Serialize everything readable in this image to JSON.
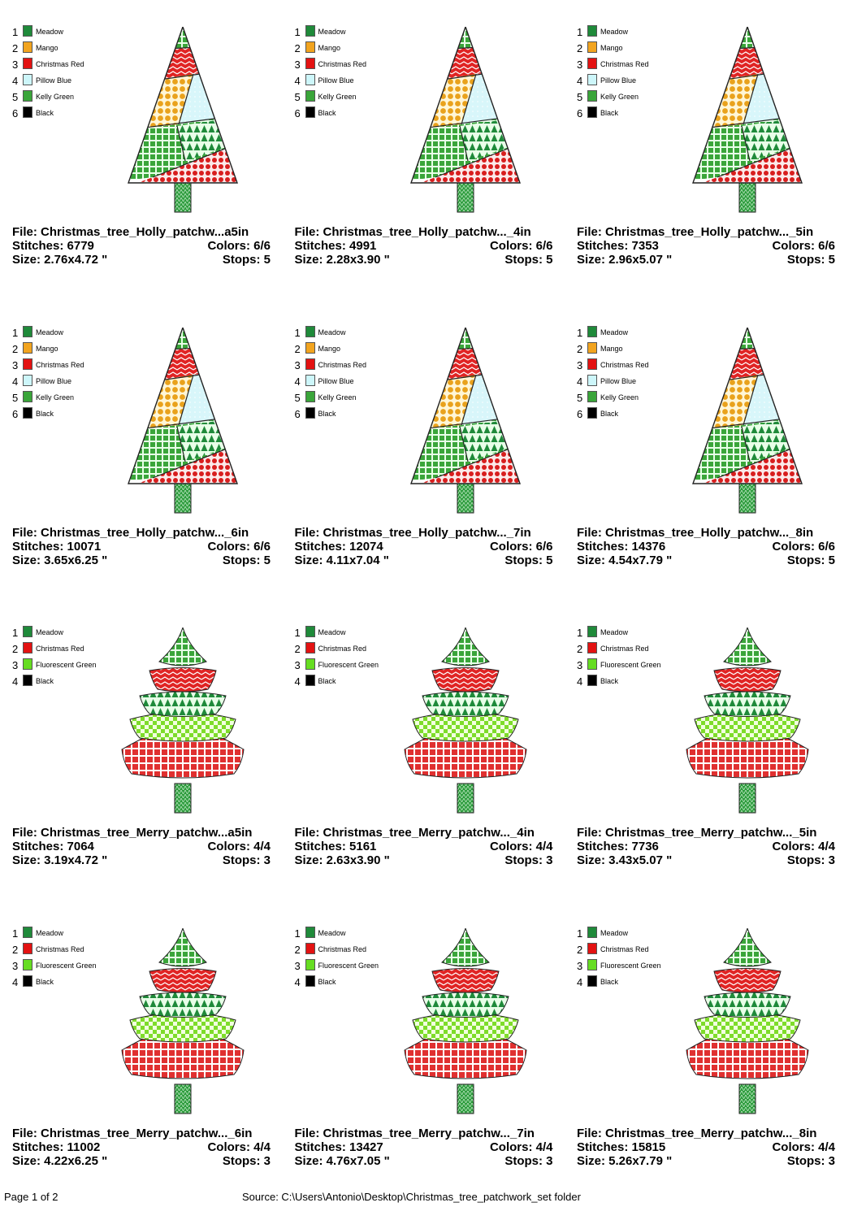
{
  "designs": [
    {
      "colors": [
        {
          "number": 1,
          "name": "Meadow",
          "swatch": "#1f8a3a"
        },
        {
          "number": 2,
          "name": "Mango",
          "swatch": "#f2a41f"
        },
        {
          "number": 3,
          "name": "Christmas Red",
          "swatch": "#e31212"
        },
        {
          "number": 4,
          "name": "Pillow Blue",
          "swatch": "#cdf6fa"
        },
        {
          "number": 5,
          "name": "Kelly Green",
          "swatch": "#3aa53a"
        },
        {
          "number": 6,
          "name": "Black",
          "swatch": "#000000"
        }
      ],
      "file": "File: Christmas_tree_Holly_patchw...a5in",
      "stitches": "Stitches: 6779",
      "color_count": "Colors: 6/6",
      "size": "Size: 2.76x4.72 \"",
      "stops": "Stops: 5"
    },
    {
      "colors": [
        {
          "number": 1,
          "name": "Meadow",
          "swatch": "#1f8a3a"
        },
        {
          "number": 2,
          "name": "Mango",
          "swatch": "#f2a41f"
        },
        {
          "number": 3,
          "name": "Christmas Red",
          "swatch": "#e31212"
        },
        {
          "number": 4,
          "name": "Pillow Blue",
          "swatch": "#cdf6fa"
        },
        {
          "number": 5,
          "name": "Kelly Green",
          "swatch": "#3aa53a"
        },
        {
          "number": 6,
          "name": "Black",
          "swatch": "#000000"
        }
      ],
      "file": "File: Christmas_tree_Holly_patchw..._4in",
      "stitches": "Stitches: 4991",
      "color_count": "Colors: 6/6",
      "size": "Size: 2.28x3.90 \"",
      "stops": "Stops: 5"
    },
    {
      "colors": [
        {
          "number": 1,
          "name": "Meadow",
          "swatch": "#1f8a3a"
        },
        {
          "number": 2,
          "name": "Mango",
          "swatch": "#f2a41f"
        },
        {
          "number": 3,
          "name": "Christmas Red",
          "swatch": "#e31212"
        },
        {
          "number": 4,
          "name": "Pillow Blue",
          "swatch": "#cdf6fa"
        },
        {
          "number": 5,
          "name": "Kelly Green",
          "swatch": "#3aa53a"
        },
        {
          "number": 6,
          "name": "Black",
          "swatch": "#000000"
        }
      ],
      "file": "File: Christmas_tree_Holly_patchw..._5in",
      "stitches": "Stitches: 7353",
      "color_count": "Colors: 6/6",
      "size": "Size: 2.96x5.07 \"",
      "stops": "Stops: 5"
    },
    {
      "colors": [
        {
          "number": 1,
          "name": "Meadow",
          "swatch": "#1f8a3a"
        },
        {
          "number": 2,
          "name": "Mango",
          "swatch": "#f2a41f"
        },
        {
          "number": 3,
          "name": "Christmas Red",
          "swatch": "#e31212"
        },
        {
          "number": 4,
          "name": "Pillow Blue",
          "swatch": "#cdf6fa"
        },
        {
          "number": 5,
          "name": "Kelly Green",
          "swatch": "#3aa53a"
        },
        {
          "number": 6,
          "name": "Black",
          "swatch": "#000000"
        }
      ],
      "file": "File: Christmas_tree_Holly_patchw..._6in",
      "stitches": "Stitches: 10071",
      "color_count": "Colors: 6/6",
      "size": "Size: 3.65x6.25 \"",
      "stops": "Stops: 5"
    },
    {
      "colors": [
        {
          "number": 1,
          "name": "Meadow",
          "swatch": "#1f8a3a"
        },
        {
          "number": 2,
          "name": "Mango",
          "swatch": "#f2a41f"
        },
        {
          "number": 3,
          "name": "Christmas Red",
          "swatch": "#e31212"
        },
        {
          "number": 4,
          "name": "Pillow Blue",
          "swatch": "#cdf6fa"
        },
        {
          "number": 5,
          "name": "Kelly Green",
          "swatch": "#3aa53a"
        },
        {
          "number": 6,
          "name": "Black",
          "swatch": "#000000"
        }
      ],
      "file": "File: Christmas_tree_Holly_patchw..._7in",
      "stitches": "Stitches: 12074",
      "color_count": "Colors: 6/6",
      "size": "Size: 4.11x7.04 \"",
      "stops": "Stops: 5"
    },
    {
      "colors": [
        {
          "number": 1,
          "name": "Meadow",
          "swatch": "#1f8a3a"
        },
        {
          "number": 2,
          "name": "Mango",
          "swatch": "#f2a41f"
        },
        {
          "number": 3,
          "name": "Christmas Red",
          "swatch": "#e31212"
        },
        {
          "number": 4,
          "name": "Pillow Blue",
          "swatch": "#cdf6fa"
        },
        {
          "number": 5,
          "name": "Kelly Green",
          "swatch": "#3aa53a"
        },
        {
          "number": 6,
          "name": "Black",
          "swatch": "#000000"
        }
      ],
      "file": "File: Christmas_tree_Holly_patchw..._8in",
      "stitches": "Stitches: 14376",
      "color_count": "Colors: 6/6",
      "size": "Size: 4.54x7.79 \"",
      "stops": "Stops: 5"
    },
    {
      "colors": [
        {
          "number": 1,
          "name": "Meadow",
          "swatch": "#1f8a3a"
        },
        {
          "number": 2,
          "name": "Christmas Red",
          "swatch": "#e31212"
        },
        {
          "number": 3,
          "name": "Fluorescent Green",
          "swatch": "#66dd22"
        },
        {
          "number": 4,
          "name": "Black",
          "swatch": "#000000"
        }
      ],
      "file": "File: Christmas_tree_Merry_patchw...a5in",
      "stitches": "Stitches: 7064",
      "color_count": "Colors: 4/4",
      "size": "Size: 3.19x4.72 \"",
      "stops": "Stops: 3"
    },
    {
      "colors": [
        {
          "number": 1,
          "name": "Meadow",
          "swatch": "#1f8a3a"
        },
        {
          "number": 2,
          "name": "Christmas Red",
          "swatch": "#e31212"
        },
        {
          "number": 3,
          "name": "Fluorescent Green",
          "swatch": "#66dd22"
        },
        {
          "number": 4,
          "name": "Black",
          "swatch": "#000000"
        }
      ],
      "file": "File: Christmas_tree_Merry_patchw..._4in",
      "stitches": "Stitches: 5161",
      "color_count": "Colors: 4/4",
      "size": "Size: 2.63x3.90 \"",
      "stops": "Stops: 3"
    },
    {
      "colors": [
        {
          "number": 1,
          "name": "Meadow",
          "swatch": "#1f8a3a"
        },
        {
          "number": 2,
          "name": "Christmas Red",
          "swatch": "#e31212"
        },
        {
          "number": 3,
          "name": "Fluorescent Green",
          "swatch": "#66dd22"
        },
        {
          "number": 4,
          "name": "Black",
          "swatch": "#000000"
        }
      ],
      "file": "File: Christmas_tree_Merry_patchw..._5in",
      "stitches": "Stitches: 7736",
      "color_count": "Colors: 4/4",
      "size": "Size: 3.43x5.07 \"",
      "stops": "Stops: 3"
    },
    {
      "colors": [
        {
          "number": 1,
          "name": "Meadow",
          "swatch": "#1f8a3a"
        },
        {
          "number": 2,
          "name": "Christmas Red",
          "swatch": "#e31212"
        },
        {
          "number": 3,
          "name": "Fluorescent Green",
          "swatch": "#66dd22"
        },
        {
          "number": 4,
          "name": "Black",
          "swatch": "#000000"
        }
      ],
      "file": "File: Christmas_tree_Merry_patchw..._6in",
      "stitches": "Stitches: 11002",
      "color_count": "Colors: 4/4",
      "size": "Size: 4.22x6.25 \"",
      "stops": "Stops: 3"
    },
    {
      "colors": [
        {
          "number": 1,
          "name": "Meadow",
          "swatch": "#1f8a3a"
        },
        {
          "number": 2,
          "name": "Christmas Red",
          "swatch": "#e31212"
        },
        {
          "number": 3,
          "name": "Fluorescent Green",
          "swatch": "#66dd22"
        },
        {
          "number": 4,
          "name": "Black",
          "swatch": "#000000"
        }
      ],
      "file": "File: Christmas_tree_Merry_patchw..._7in",
      "stitches": "Stitches: 13427",
      "color_count": "Colors: 4/4",
      "size": "Size: 4.76x7.05 \"",
      "stops": "Stops: 3"
    },
    {
      "colors": [
        {
          "number": 1,
          "name": "Meadow",
          "swatch": "#1f8a3a"
        },
        {
          "number": 2,
          "name": "Christmas Red",
          "swatch": "#e31212"
        },
        {
          "number": 3,
          "name": "Fluorescent Green",
          "swatch": "#66dd22"
        },
        {
          "number": 4,
          "name": "Black",
          "swatch": "#000000"
        }
      ],
      "file": "File: Christmas_tree_Merry_patchw..._8in",
      "stitches": "Stitches: 15815",
      "color_count": "Colors: 4/4",
      "size": "Size: 5.26x7.79 \"",
      "stops": "Stops: 3"
    }
  ],
  "footer": {
    "page": "Page 1 of 2",
    "source": "Source: C:\\Users\\Antonio\\Desktop\\Christmas_tree_patchwork_set folder"
  }
}
